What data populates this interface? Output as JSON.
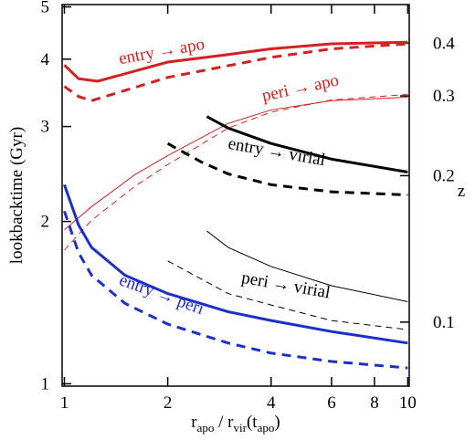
{
  "chart_data": {
    "type": "line",
    "xlabel_parts": [
      "r",
      "apo",
      " / r",
      "vir",
      "(t",
      "apo",
      ")"
    ],
    "ylabel": "lookbacktime (Gyr)",
    "y2label": "z",
    "xscale": "log",
    "yscale": "log",
    "xlim": [
      0.985,
      10.1
    ],
    "ylim": [
      0.99,
      5.05
    ],
    "xticks": [
      1,
      2,
      4,
      6,
      8,
      10
    ],
    "yticks": [
      1,
      2,
      3,
      4,
      5
    ],
    "y2ticks": [
      0.1,
      0.2,
      0.3,
      0.4
    ],
    "series": [
      {
        "color": "#d42020",
        "width": 3,
        "dash": false,
        "x": [
          1,
          1.1,
          1.25,
          2,
          3,
          4,
          6,
          10
        ],
        "values": [
          3.9,
          3.68,
          3.64,
          3.95,
          4.08,
          4.18,
          4.27,
          4.3
        ]
      },
      {
        "color": "#d42020",
        "width": 3,
        "dash": true,
        "x": [
          1,
          1.1,
          1.2,
          2,
          4,
          6,
          10
        ],
        "values": [
          3.56,
          3.41,
          3.35,
          3.7,
          4.03,
          4.18,
          4.27
        ]
      },
      {
        "color": "#d42020",
        "width": 1,
        "dash": false,
        "x": [
          1,
          1.2,
          1.6,
          2,
          3,
          4,
          6,
          10
        ],
        "values": [
          1.93,
          2.13,
          2.44,
          2.65,
          3.04,
          3.22,
          3.35,
          3.4
        ]
      },
      {
        "color": "#d42020",
        "width": 1,
        "dash": true,
        "x": [
          1,
          1.2,
          1.6,
          2,
          3,
          4,
          6,
          10
        ],
        "values": [
          1.77,
          2.01,
          2.32,
          2.55,
          2.98,
          3.19,
          3.36,
          3.44
        ]
      },
      {
        "color": "#000000",
        "width": 3,
        "dash": false,
        "x": [
          2.6,
          3,
          4,
          6,
          10
        ],
        "values": [
          3.13,
          2.98,
          2.79,
          2.61,
          2.47
        ]
      },
      {
        "color": "#000000",
        "width": 3,
        "dash": true,
        "x": [
          2,
          2.5,
          3,
          4,
          6,
          10
        ],
        "values": [
          2.79,
          2.58,
          2.45,
          2.34,
          2.27,
          2.24
        ]
      },
      {
        "color": "#000000",
        "width": 1,
        "dash": false,
        "x": [
          2.6,
          3,
          4,
          6,
          10
        ],
        "values": [
          1.92,
          1.79,
          1.65,
          1.52,
          1.42
        ]
      },
      {
        "color": "#000000",
        "width": 1,
        "dash": true,
        "x": [
          2,
          3,
          4,
          6,
          10
        ],
        "values": [
          1.69,
          1.47,
          1.4,
          1.31,
          1.26
        ]
      },
      {
        "color": "#1c2fc8",
        "width": 3,
        "dash": false,
        "x": [
          1,
          1.1,
          1.2,
          1.5,
          2,
          3,
          4,
          6,
          10
        ],
        "values": [
          2.34,
          1.97,
          1.79,
          1.59,
          1.47,
          1.36,
          1.31,
          1.25,
          1.19
        ]
      },
      {
        "color": "#1c2fc8",
        "width": 3,
        "dash": true,
        "x": [
          1,
          1.1,
          1.2,
          1.5,
          2,
          3,
          4,
          6,
          10
        ],
        "values": [
          2.09,
          1.75,
          1.59,
          1.41,
          1.29,
          1.19,
          1.14,
          1.1,
          1.07
        ]
      }
    ],
    "annotations": [
      {
        "text": "entry → apo",
        "color": "#d42020"
      },
      {
        "text": "peri → apo",
        "color": "#d42020"
      },
      {
        "text": "entry → virial",
        "color": "#000000"
      },
      {
        "text": "peri → virial",
        "color": "#000000"
      },
      {
        "text": "entry → peri",
        "color": "#1c2fc8"
      }
    ]
  }
}
